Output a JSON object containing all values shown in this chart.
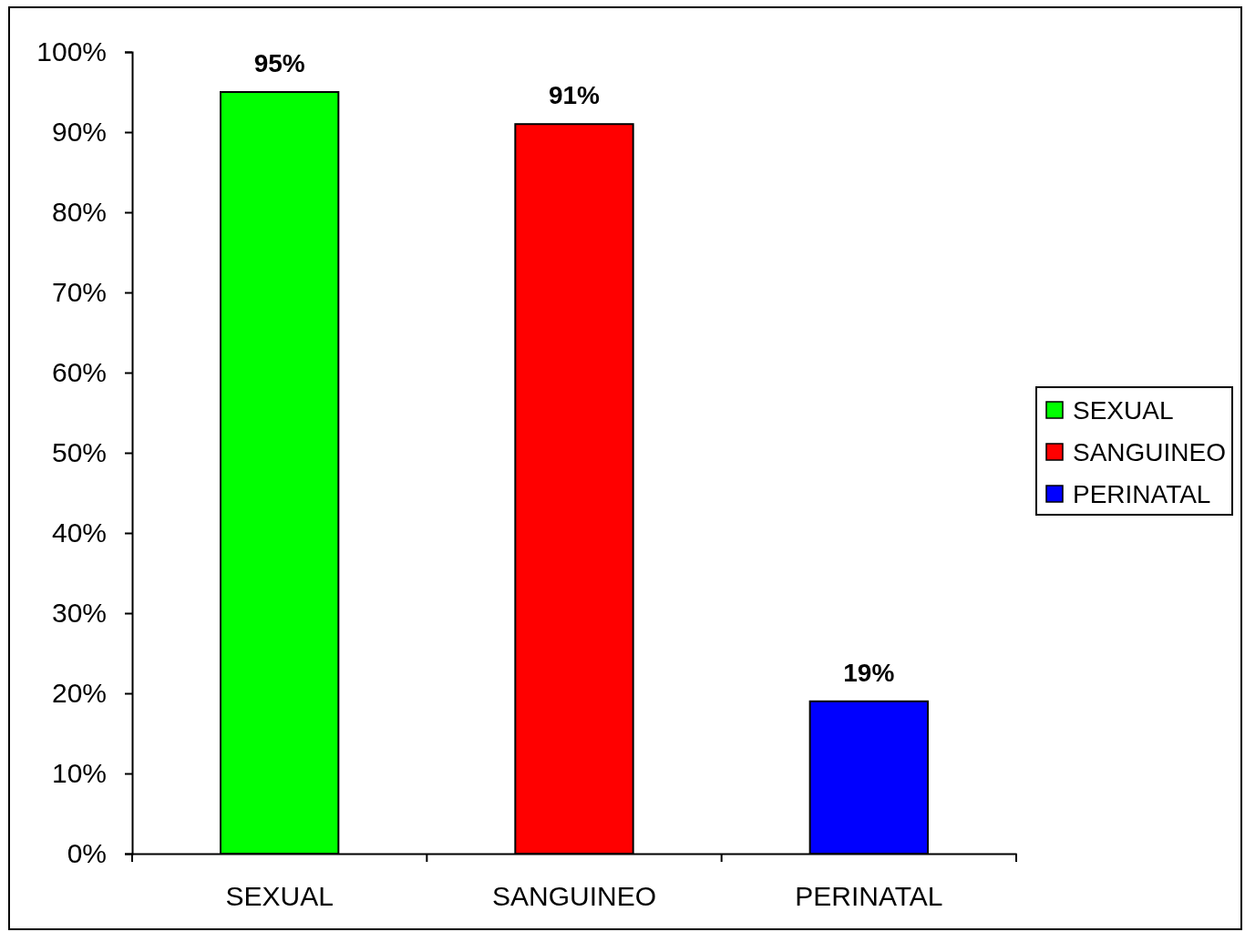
{
  "chart_data": {
    "type": "bar",
    "categories": [
      "SEXUAL",
      "SANGUINEO",
      "PERINATAL"
    ],
    "series": [
      {
        "name": "SEXUAL",
        "color": "#00ff00",
        "values": [
          95,
          null,
          null
        ],
        "value_labels": [
          "95%",
          null,
          null
        ]
      },
      {
        "name": "SANGUINEO",
        "color": "#ff0000",
        "values": [
          null,
          91,
          null
        ],
        "value_labels": [
          null,
          "91%",
          null
        ]
      },
      {
        "name": "PERINATAL",
        "color": "#0000ff",
        "values": [
          null,
          null,
          19
        ],
        "value_labels": [
          null,
          null,
          "19%"
        ]
      }
    ],
    "ylim": [
      0,
      100
    ],
    "yticks": [
      {
        "value": 0,
        "label": "0%"
      },
      {
        "value": 10,
        "label": "10%"
      },
      {
        "value": 20,
        "label": "20%"
      },
      {
        "value": 30,
        "label": "30%"
      },
      {
        "value": 40,
        "label": "40%"
      },
      {
        "value": 50,
        "label": "50%"
      },
      {
        "value": 60,
        "label": "60%"
      },
      {
        "value": 70,
        "label": "70%"
      },
      {
        "value": 80,
        "label": "80%"
      },
      {
        "value": 90,
        "label": "90%"
      },
      {
        "value": 100,
        "label": "100%"
      }
    ],
    "legend": "right"
  }
}
